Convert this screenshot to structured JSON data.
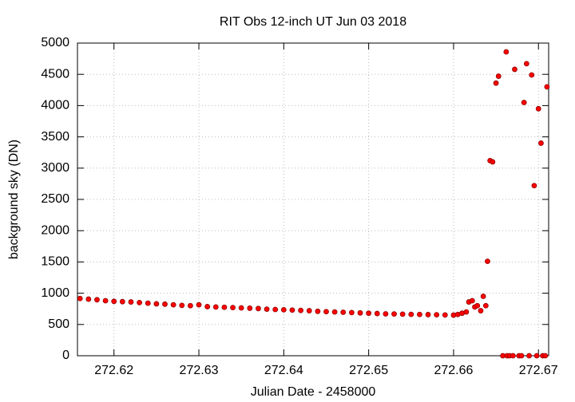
{
  "chart_data": {
    "type": "scatter",
    "title": "RIT Obs 12-inch UT Jun 03 2018",
    "x_label": "Julian Date - 2458000",
    "y_label": "background sky (DN)",
    "color": "#ff0000",
    "grid": true,
    "xlim": [
      272.6157,
      272.6712
    ],
    "ylim": [
      0,
      5000
    ],
    "xticks": [
      272.62,
      272.63,
      272.64,
      272.65,
      272.66,
      272.67
    ],
    "yticks": [
      0,
      500,
      1000,
      1500,
      2000,
      2500,
      3000,
      3500,
      4000,
      4500,
      5000
    ],
    "x": [
      272.616,
      272.617,
      272.618,
      272.619,
      272.62,
      272.621,
      272.622,
      272.623,
      272.624,
      272.625,
      272.626,
      272.627,
      272.628,
      272.629,
      272.63,
      272.631,
      272.632,
      272.633,
      272.634,
      272.635,
      272.636,
      272.637,
      272.638,
      272.639,
      272.64,
      272.641,
      272.642,
      272.643,
      272.644,
      272.645,
      272.646,
      272.647,
      272.648,
      272.649,
      272.65,
      272.651,
      272.652,
      272.653,
      272.654,
      272.655,
      272.656,
      272.657,
      272.658,
      272.659,
      272.66,
      272.6605,
      272.661,
      272.6615,
      272.6618,
      272.6622,
      272.6625,
      272.6628,
      272.6632,
      272.6635,
      272.6638,
      272.664,
      272.6643,
      272.6646,
      272.665,
      272.6653,
      272.6658,
      272.6662,
      272.6663,
      272.6666,
      272.667,
      272.6672,
      272.6677,
      272.668,
      272.6683,
      272.6686,
      272.6689,
      272.6692,
      272.6695,
      272.6698,
      272.67,
      272.6703,
      272.6705,
      272.6708,
      272.671
    ],
    "values": [
      915,
      905,
      895,
      880,
      870,
      865,
      860,
      850,
      840,
      830,
      825,
      815,
      805,
      800,
      815,
      785,
      780,
      775,
      770,
      765,
      760,
      755,
      745,
      740,
      735,
      730,
      725,
      720,
      710,
      705,
      700,
      695,
      690,
      685,
      680,
      675,
      670,
      668,
      665,
      662,
      660,
      658,
      655,
      652,
      650,
      660,
      680,
      700,
      860,
      880,
      780,
      800,
      720,
      950,
      800,
      1510,
      3120,
      3100,
      4360,
      4470,
      0,
      4860,
      0,
      0,
      0,
      4580,
      0,
      0,
      4050,
      4670,
      0,
      4490,
      2720,
      0,
      3950,
      3400,
      0,
      0,
      4300
    ]
  }
}
